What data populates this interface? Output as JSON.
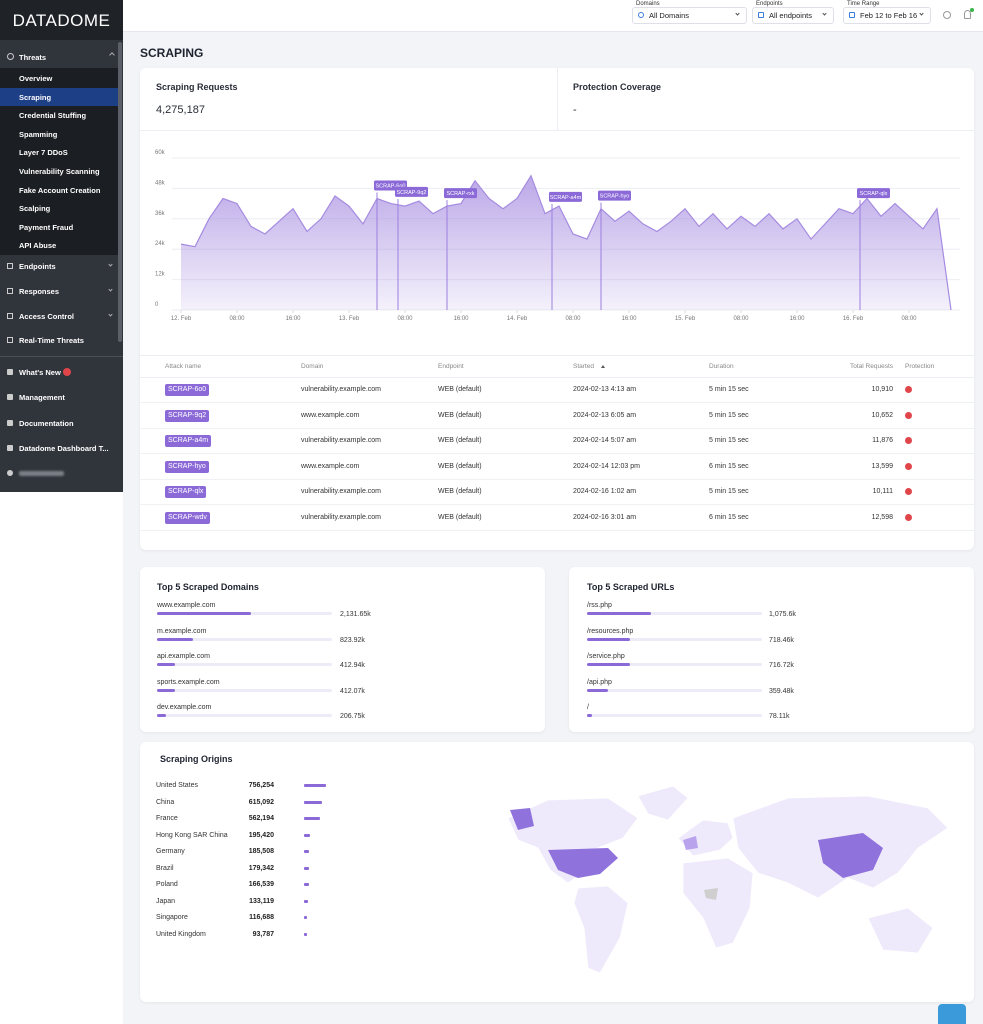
{
  "sidebar": {
    "logo": "DATADOME",
    "threats": {
      "label": "Threats",
      "items": [
        "Overview",
        "Scraping",
        "Credential Stuffing",
        "Spamming",
        "Layer 7 DDoS",
        "Vulnerability Scanning",
        "Fake Account Creation",
        "Scalping",
        "Payment Fraud",
        "API Abuse"
      ]
    },
    "nav": [
      "Endpoints",
      "Responses",
      "Access Control",
      "Real-Time Threats"
    ],
    "bottom_nav": [
      "What's New",
      "Management",
      "Documentation",
      "Datadome Dashboard T..."
    ]
  },
  "topbar": {
    "filters": [
      {
        "label": "Domains",
        "value": "All Domains"
      },
      {
        "label": "Endpoints",
        "value": "All endpoints"
      },
      {
        "label": "Time Range",
        "value": "Feb 12 to Feb 16"
      }
    ]
  },
  "page_title": "SCRAPING",
  "summary": [
    {
      "label": "Scraping Requests",
      "value": "4,275,187"
    },
    {
      "label": "Protection Coverage",
      "value": "-"
    }
  ],
  "chart_data": {
    "type": "area",
    "color": "#a58be0",
    "x": [
      0,
      2,
      4,
      6,
      8,
      10,
      12,
      14,
      16,
      18,
      20,
      22,
      24,
      26,
      28,
      30,
      32,
      34,
      36,
      38,
      40,
      42,
      44,
      46,
      48,
      50,
      52,
      54,
      56,
      58,
      60,
      62,
      64,
      66,
      68,
      70,
      72,
      74,
      76,
      78,
      80,
      82,
      84,
      86,
      88,
      90,
      92,
      94,
      96,
      98,
      100,
      102,
      104,
      106,
      108,
      110
    ],
    "values": [
      26000,
      25000,
      36000,
      44000,
      42000,
      33000,
      30000,
      35000,
      40000,
      31000,
      36000,
      45000,
      41000,
      34000,
      44000,
      42000,
      41000,
      43000,
      38000,
      41000,
      42000,
      51000,
      44000,
      40000,
      44000,
      53000,
      38000,
      41000,
      30000,
      28000,
      40000,
      35000,
      39000,
      34000,
      31000,
      35000,
      40000,
      33000,
      38000,
      32000,
      37000,
      33000,
      38000,
      32000,
      36000,
      28000,
      34000,
      40000,
      38000,
      44000,
      37000,
      42000,
      37000,
      32000,
      40000,
      0
    ],
    "xlim": [
      0,
      110
    ],
    "xticks": [
      {
        "value": 0,
        "label": "12. Feb"
      },
      {
        "value": 8,
        "label": "08:00"
      },
      {
        "value": 16,
        "label": "16:00"
      },
      {
        "value": 24,
        "label": "13. Feb"
      },
      {
        "value": 32,
        "label": "08:00"
      },
      {
        "value": 40,
        "label": "16:00"
      },
      {
        "value": 48,
        "label": "14. Feb"
      },
      {
        "value": 56,
        "label": "08:00"
      },
      {
        "value": 64,
        "label": "16:00"
      },
      {
        "value": 72,
        "label": "15. Feb"
      },
      {
        "value": 80,
        "label": "08:00"
      },
      {
        "value": 88,
        "label": "16:00"
      },
      {
        "value": 96,
        "label": "16. Feb"
      },
      {
        "value": 104,
        "label": "08:00"
      }
    ],
    "ylim": [
      0,
      60000
    ],
    "yticks": [
      0,
      {
        "value": 12000,
        "label": "12k"
      },
      {
        "value": 24000,
        "label": "24k"
      },
      {
        "value": 36000,
        "label": "36k"
      },
      {
        "value": 48000,
        "label": "48k"
      },
      {
        "value": 60000,
        "label": "60k"
      }
    ],
    "grid": true,
    "annotations": [
      {
        "text": "SCRAP-6o0",
        "x": 28
      },
      {
        "text": "SCRAP-9q2",
        "x": 31
      },
      {
        "text": "SCRAP-rxk",
        "x": 38
      },
      {
        "text": "SCRAP-a4m",
        "x": 53
      },
      {
        "text": "SCRAP-hyo",
        "x": 60
      },
      {
        "text": "SCRAP-qlx",
        "x": 97
      }
    ]
  },
  "table": {
    "columns": [
      "Attack name",
      "Domain",
      "Endpoint",
      "Started",
      "Duration",
      "Total Requests",
      "Protection"
    ],
    "rows": [
      [
        "SCRAP-6o0",
        "vulnerability.example.com",
        "WEB (default)",
        "2024-02-13 4:13 am",
        "5 min 15 sec",
        "10,910"
      ],
      [
        "SCRAP-9q2",
        "www.example.com",
        "WEB (default)",
        "2024-02-13 6:05 am",
        "5 min 15 sec",
        "10,652"
      ],
      [
        "SCRAP-a4m",
        "vulnerability.example.com",
        "WEB (default)",
        "2024-02-14 5:07 am",
        "5 min 15 sec",
        "11,876"
      ],
      [
        "SCRAP-hyo",
        "www.example.com",
        "WEB (default)",
        "2024-02-14 12:03 pm",
        "6 min 15 sec",
        "13,599"
      ],
      [
        "SCRAP-qlx",
        "vulnerability.example.com",
        "WEB (default)",
        "2024-02-16 1:02 am",
        "5 min 15 sec",
        "10,111"
      ],
      [
        "SCRAP-wdv",
        "vulnerability.example.com",
        "WEB (default)",
        "2024-02-16 3:01 am",
        "6 min 15 sec",
        "12,598"
      ]
    ]
  },
  "top_domains": {
    "title": "Top 5 Scraped Domains",
    "categories": [
      "www.example.com",
      "m.example.com",
      "api.example.com",
      "sports.example.com",
      "dev.example.com"
    ],
    "values": [
      2131650,
      823920,
      412940,
      412070,
      206750
    ],
    "value_labels": [
      "2,131.65k",
      "823.92k",
      "412.94k",
      "412.07k",
      "206.75k"
    ]
  },
  "top_urls": {
    "title": "Top 5 Scraped URLs",
    "categories": [
      "/rss.php",
      "/resources.php",
      "/service.php",
      "/api.php",
      "/"
    ],
    "values": [
      1075600,
      718460,
      716720,
      359480,
      78110
    ],
    "value_labels": [
      "1,075.6k",
      "718.46k",
      "716.72k",
      "359.48k",
      "78.11k"
    ]
  },
  "origins": {
    "title": "Scraping Origins",
    "categories": [
      "United States",
      "China",
      "France",
      "Hong Kong SAR China",
      "Germany",
      "Brazil",
      "Poland",
      "Japan",
      "Singapore",
      "United Kingdom"
    ],
    "values": [
      756254,
      615092,
      562194,
      195420,
      185508,
      179342,
      166539,
      133119,
      116688,
      93787
    ],
    "value_labels": [
      "756,254",
      "615,092",
      "562,194",
      "195,420",
      "185,508",
      "179,342",
      "166,539",
      "133,119",
      "116,688",
      "93,787"
    ]
  }
}
